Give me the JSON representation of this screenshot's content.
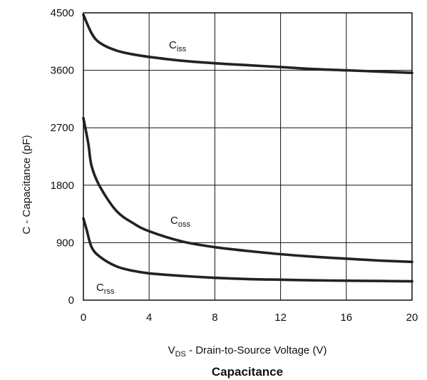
{
  "chart_data": {
    "type": "line",
    "title": "Capacitance",
    "xlabel": {
      "main": "V",
      "sub": "DS",
      "rest": " - Drain-to-Source Voltage (V)"
    },
    "ylabel": "C - Capacitance (pF)",
    "xlim": [
      0,
      20
    ],
    "ylim": [
      0,
      4500
    ],
    "xticks": [
      0,
      4,
      8,
      12,
      16,
      20
    ],
    "yticks": [
      0,
      900,
      1800,
      2700,
      3600,
      4500
    ],
    "xtick_labels": [
      "0",
      "4",
      "8",
      "12",
      "16",
      "20"
    ],
    "ytick_labels": [
      "0",
      "900",
      "1800",
      "2700",
      "3600",
      "4500"
    ],
    "grid": true,
    "series": [
      {
        "name": "Ciss",
        "label_main": "C",
        "label_sub": "iss",
        "x": [
          0,
          0.5,
          1,
          2,
          3,
          4,
          6,
          8,
          10,
          12,
          14,
          16,
          18,
          20
        ],
        "y": [
          4470,
          4180,
          4030,
          3910,
          3850,
          3810,
          3750,
          3710,
          3680,
          3650,
          3620,
          3600,
          3580,
          3560
        ]
      },
      {
        "name": "Coss",
        "label_main": "C",
        "label_sub": "oss",
        "x": [
          0,
          0.3,
          0.5,
          1,
          2,
          3,
          4,
          6,
          8,
          10,
          12,
          14,
          16,
          18,
          20
        ],
        "y": [
          2850,
          2450,
          2100,
          1780,
          1400,
          1210,
          1080,
          920,
          830,
          770,
          720,
          680,
          650,
          620,
          600
        ]
      },
      {
        "name": "Crss",
        "label_main": "C",
        "label_sub": "rss",
        "x": [
          0,
          0.2,
          0.5,
          1,
          2,
          3,
          4,
          6,
          8,
          10,
          12,
          14,
          16,
          18,
          20
        ],
        "y": [
          1280,
          1100,
          830,
          680,
          530,
          460,
          420,
          380,
          350,
          330,
          320,
          310,
          305,
          300,
          295
        ]
      }
    ]
  }
}
